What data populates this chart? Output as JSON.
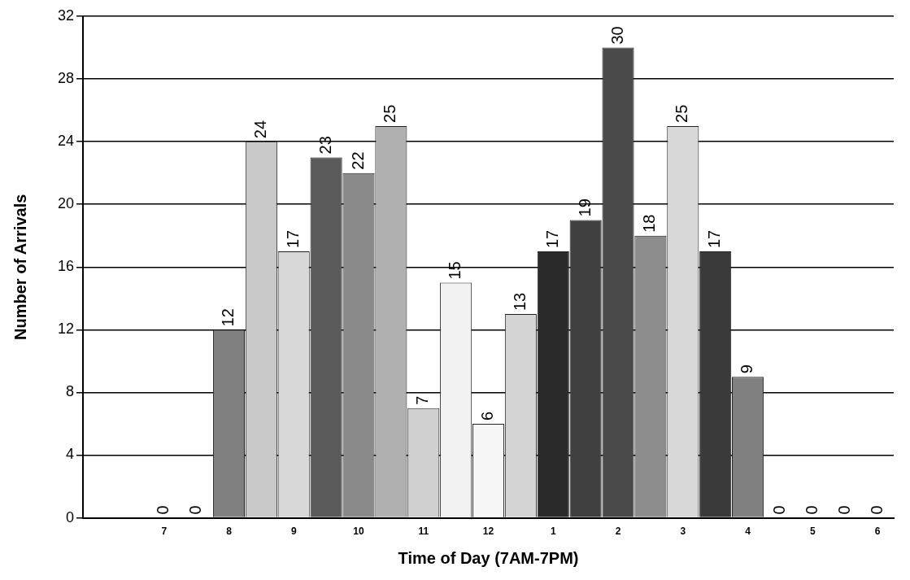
{
  "chart_data": {
    "type": "bar",
    "xlabel": "Time of Day (7AM-7PM)",
    "ylabel": "Number of Arrivals",
    "categories": [
      null,
      null,
      "7",
      null,
      "8",
      null,
      "9",
      null,
      "10",
      null,
      "11",
      null,
      "12",
      null,
      "1",
      null,
      "2",
      null,
      "3",
      null,
      "4",
      null,
      "5",
      null,
      "6"
    ],
    "values": [
      null,
      null,
      0,
      0,
      12,
      24,
      17,
      23,
      22,
      25,
      7,
      15,
      6,
      13,
      17,
      19,
      30,
      18,
      25,
      17,
      9,
      0,
      0,
      0,
      0
    ],
    "colors": [
      "#999999",
      "#999999",
      "#999999",
      "#999999",
      "#808080",
      "#c8c8c8",
      "#d8d8d8",
      "#5a5a5a",
      "#8a8a8a",
      "#b0b0b0",
      "#d0d0d0",
      "#f2f2f2",
      "#f6f6f6",
      "#d4d4d4",
      "#2a2a2a",
      "#404040",
      "#4a4a4a",
      "#8c8c8c",
      "#d8d8d8",
      "#3a3a3a",
      "#808080",
      "#999999",
      "#999999",
      "#999999",
      "#999999"
    ],
    "ylim": [
      0,
      32
    ],
    "yticks": [
      0,
      4,
      8,
      12,
      16,
      20,
      24,
      28,
      32
    ],
    "grid": "y",
    "data_labels": true,
    "legend": false
  }
}
